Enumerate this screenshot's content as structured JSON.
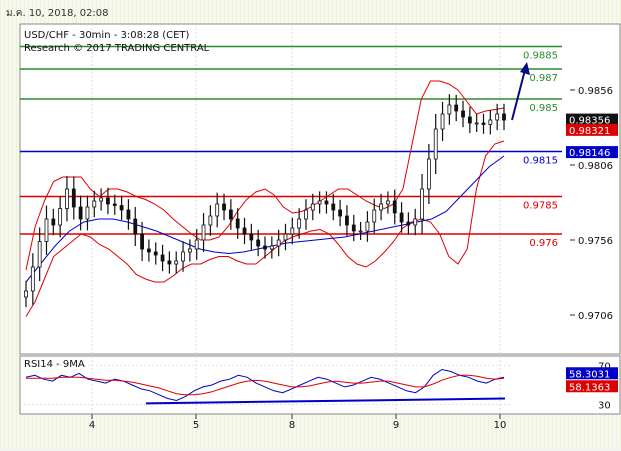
{
  "header": {
    "timestamp": "ม.ค. 10, 2018, 02:08",
    "instrument": "USD/CHF - 30min - 3:08:28 (CET)",
    "copyright": "Research © 2017 TRADING CENTRAL"
  },
  "rsi_panel": {
    "label": "RSI14 - 9MA"
  },
  "colors": {
    "resistance": "#2e8b2e",
    "pivot": "#0000cc",
    "support": "#dd0000",
    "bollinger": "#dd0000",
    "moving_average": "#0000cc",
    "rsi": "#0000cc",
    "rsi_ma": "#dd0000",
    "price_tag_last": "#111111",
    "price_tag_red": "#dd0000",
    "price_tag_blue": "#0000cc",
    "arrow": "#0a0a80"
  },
  "chart_data": [
    {
      "type": "candlestick",
      "ylim": [
        9.68,
        9.9
      ],
      "y_ticks": [
        {
          "value": 0.9856,
          "label": "0.9856"
        },
        {
          "value": 0.9806,
          "label": "0.9806"
        },
        {
          "value": 0.9756,
          "label": "0.9756"
        },
        {
          "value": 0.9706,
          "label": "0.9706"
        }
      ],
      "x_ticks": [
        "4",
        "5",
        "8",
        "9",
        "10"
      ],
      "levels": [
        {
          "value": 0.9885,
          "label": "0.9885",
          "kind": "resistance"
        },
        {
          "value": 0.987,
          "label": "0.987",
          "kind": "resistance"
        },
        {
          "value": 0.985,
          "label": "0.985",
          "kind": "resistance"
        },
        {
          "value": 0.9815,
          "label": "0.9815",
          "kind": "pivot"
        },
        {
          "value": 0.9785,
          "label": "0.9785",
          "kind": "support"
        },
        {
          "value": 0.976,
          "label": "0.976",
          "kind": "support"
        }
      ],
      "price_tags": [
        {
          "label": "0.98356",
          "kind": "last"
        },
        {
          "label": "0.98321",
          "kind": "red"
        },
        {
          "label": "0.98146",
          "kind": "blue"
        }
      ],
      "close_series": [
        0.9722,
        0.9738,
        0.9755,
        0.977,
        0.9766,
        0.9777,
        0.979,
        0.9778,
        0.977,
        0.9778,
        0.9782,
        0.9784,
        0.978,
        0.9779,
        0.9776,
        0.977,
        0.976,
        0.975,
        0.9748,
        0.9746,
        0.9742,
        0.974,
        0.9742,
        0.9748,
        0.975,
        0.9756,
        0.9766,
        0.9772,
        0.978,
        0.9776,
        0.977,
        0.9764,
        0.976,
        0.9756,
        0.9752,
        0.975,
        0.9752,
        0.9756,
        0.976,
        0.9764,
        0.977,
        0.9776,
        0.978,
        0.9782,
        0.978,
        0.9776,
        0.9772,
        0.9766,
        0.9762,
        0.9762,
        0.9768,
        0.9776,
        0.978,
        0.9782,
        0.9774,
        0.9768,
        0.9766,
        0.977,
        0.979,
        0.981,
        0.983,
        0.984,
        0.9846,
        0.9842,
        0.9838,
        0.9834,
        0.9834,
        0.9833,
        0.9836,
        0.984,
        0.9836
      ],
      "bollinger_upper": [
        9.736,
        9.765,
        9.782,
        9.795,
        9.798,
        9.798,
        9.798,
        9.79,
        9.785,
        9.79,
        9.79,
        9.788,
        9.785,
        9.783,
        9.78,
        9.776,
        9.77,
        9.765,
        9.76,
        9.756,
        9.756,
        9.758,
        9.765,
        9.775,
        9.783,
        9.788,
        9.79,
        9.786,
        9.778,
        9.774,
        9.775,
        9.778,
        9.782,
        9.786,
        9.79,
        9.79,
        9.786,
        9.782,
        9.779,
        9.777,
        9.78,
        9.79,
        9.82,
        9.85,
        9.862,
        9.862,
        9.86,
        9.856,
        9.848,
        9.84,
        9.842,
        9.843,
        9.844
      ],
      "bollinger_lower": [
        9.705,
        9.715,
        9.73,
        9.745,
        9.75,
        9.755,
        9.76,
        9.758,
        9.753,
        9.75,
        9.745,
        9.74,
        9.733,
        9.73,
        9.728,
        9.728,
        9.732,
        9.737,
        9.74,
        9.74,
        9.743,
        9.745,
        9.745,
        9.742,
        9.74,
        9.74,
        9.745,
        9.75,
        9.755,
        9.758,
        9.76,
        9.762,
        9.763,
        9.76,
        9.753,
        9.745,
        9.74,
        9.738,
        9.742,
        9.748,
        9.755,
        9.764,
        9.768,
        9.77,
        9.768,
        9.76,
        9.745,
        9.74,
        9.75,
        9.79,
        9.812,
        9.82,
        9.822
      ],
      "moving_average": [
        9.728,
        9.74,
        9.752,
        9.762,
        9.768,
        9.77,
        9.77,
        9.768,
        9.765,
        9.762,
        9.758,
        9.754,
        9.75,
        9.748,
        9.747,
        9.748,
        9.75,
        9.752,
        9.754,
        9.755,
        9.756,
        9.757,
        9.758,
        9.76,
        9.762,
        9.764,
        9.766,
        9.768,
        9.77,
        9.775,
        9.785,
        9.795,
        9.805,
        9.812
      ]
    },
    {
      "type": "line",
      "ylim": [
        20,
        80
      ],
      "y_ticks": [
        {
          "value": 70,
          "label": "70"
        },
        {
          "value": 30,
          "label": "30"
        }
      ],
      "value_tags": [
        {
          "label": "58.3031",
          "kind": "rsi"
        },
        {
          "label": "58.1363",
          "kind": "rsi_ma"
        }
      ],
      "series": [
        {
          "name": "RSI14",
          "values": [
            58,
            60,
            56,
            54,
            60,
            58,
            62,
            56,
            54,
            52,
            56,
            54,
            50,
            46,
            44,
            40,
            36,
            34,
            38,
            44,
            48,
            50,
            54,
            56,
            60,
            58,
            52,
            48,
            44,
            42,
            46,
            50,
            54,
            58,
            56,
            52,
            48,
            50,
            54,
            58,
            56,
            52,
            48,
            44,
            42,
            48,
            60,
            66,
            64,
            60,
            58,
            54,
            52,
            56,
            58
          ]
        },
        {
          "name": "9MA",
          "values": [
            57,
            57,
            57,
            57,
            58,
            58,
            58,
            57,
            56,
            55,
            55,
            54,
            53,
            51,
            49,
            47,
            44,
            41,
            40,
            40,
            41,
            43,
            46,
            49,
            52,
            54,
            55,
            54,
            52,
            50,
            48,
            48,
            49,
            51,
            53,
            54,
            53,
            52,
            52,
            53,
            54,
            54,
            52,
            50,
            48,
            48,
            51,
            55,
            58,
            60,
            60,
            59,
            57,
            56,
            57
          ]
        }
      ]
    }
  ]
}
